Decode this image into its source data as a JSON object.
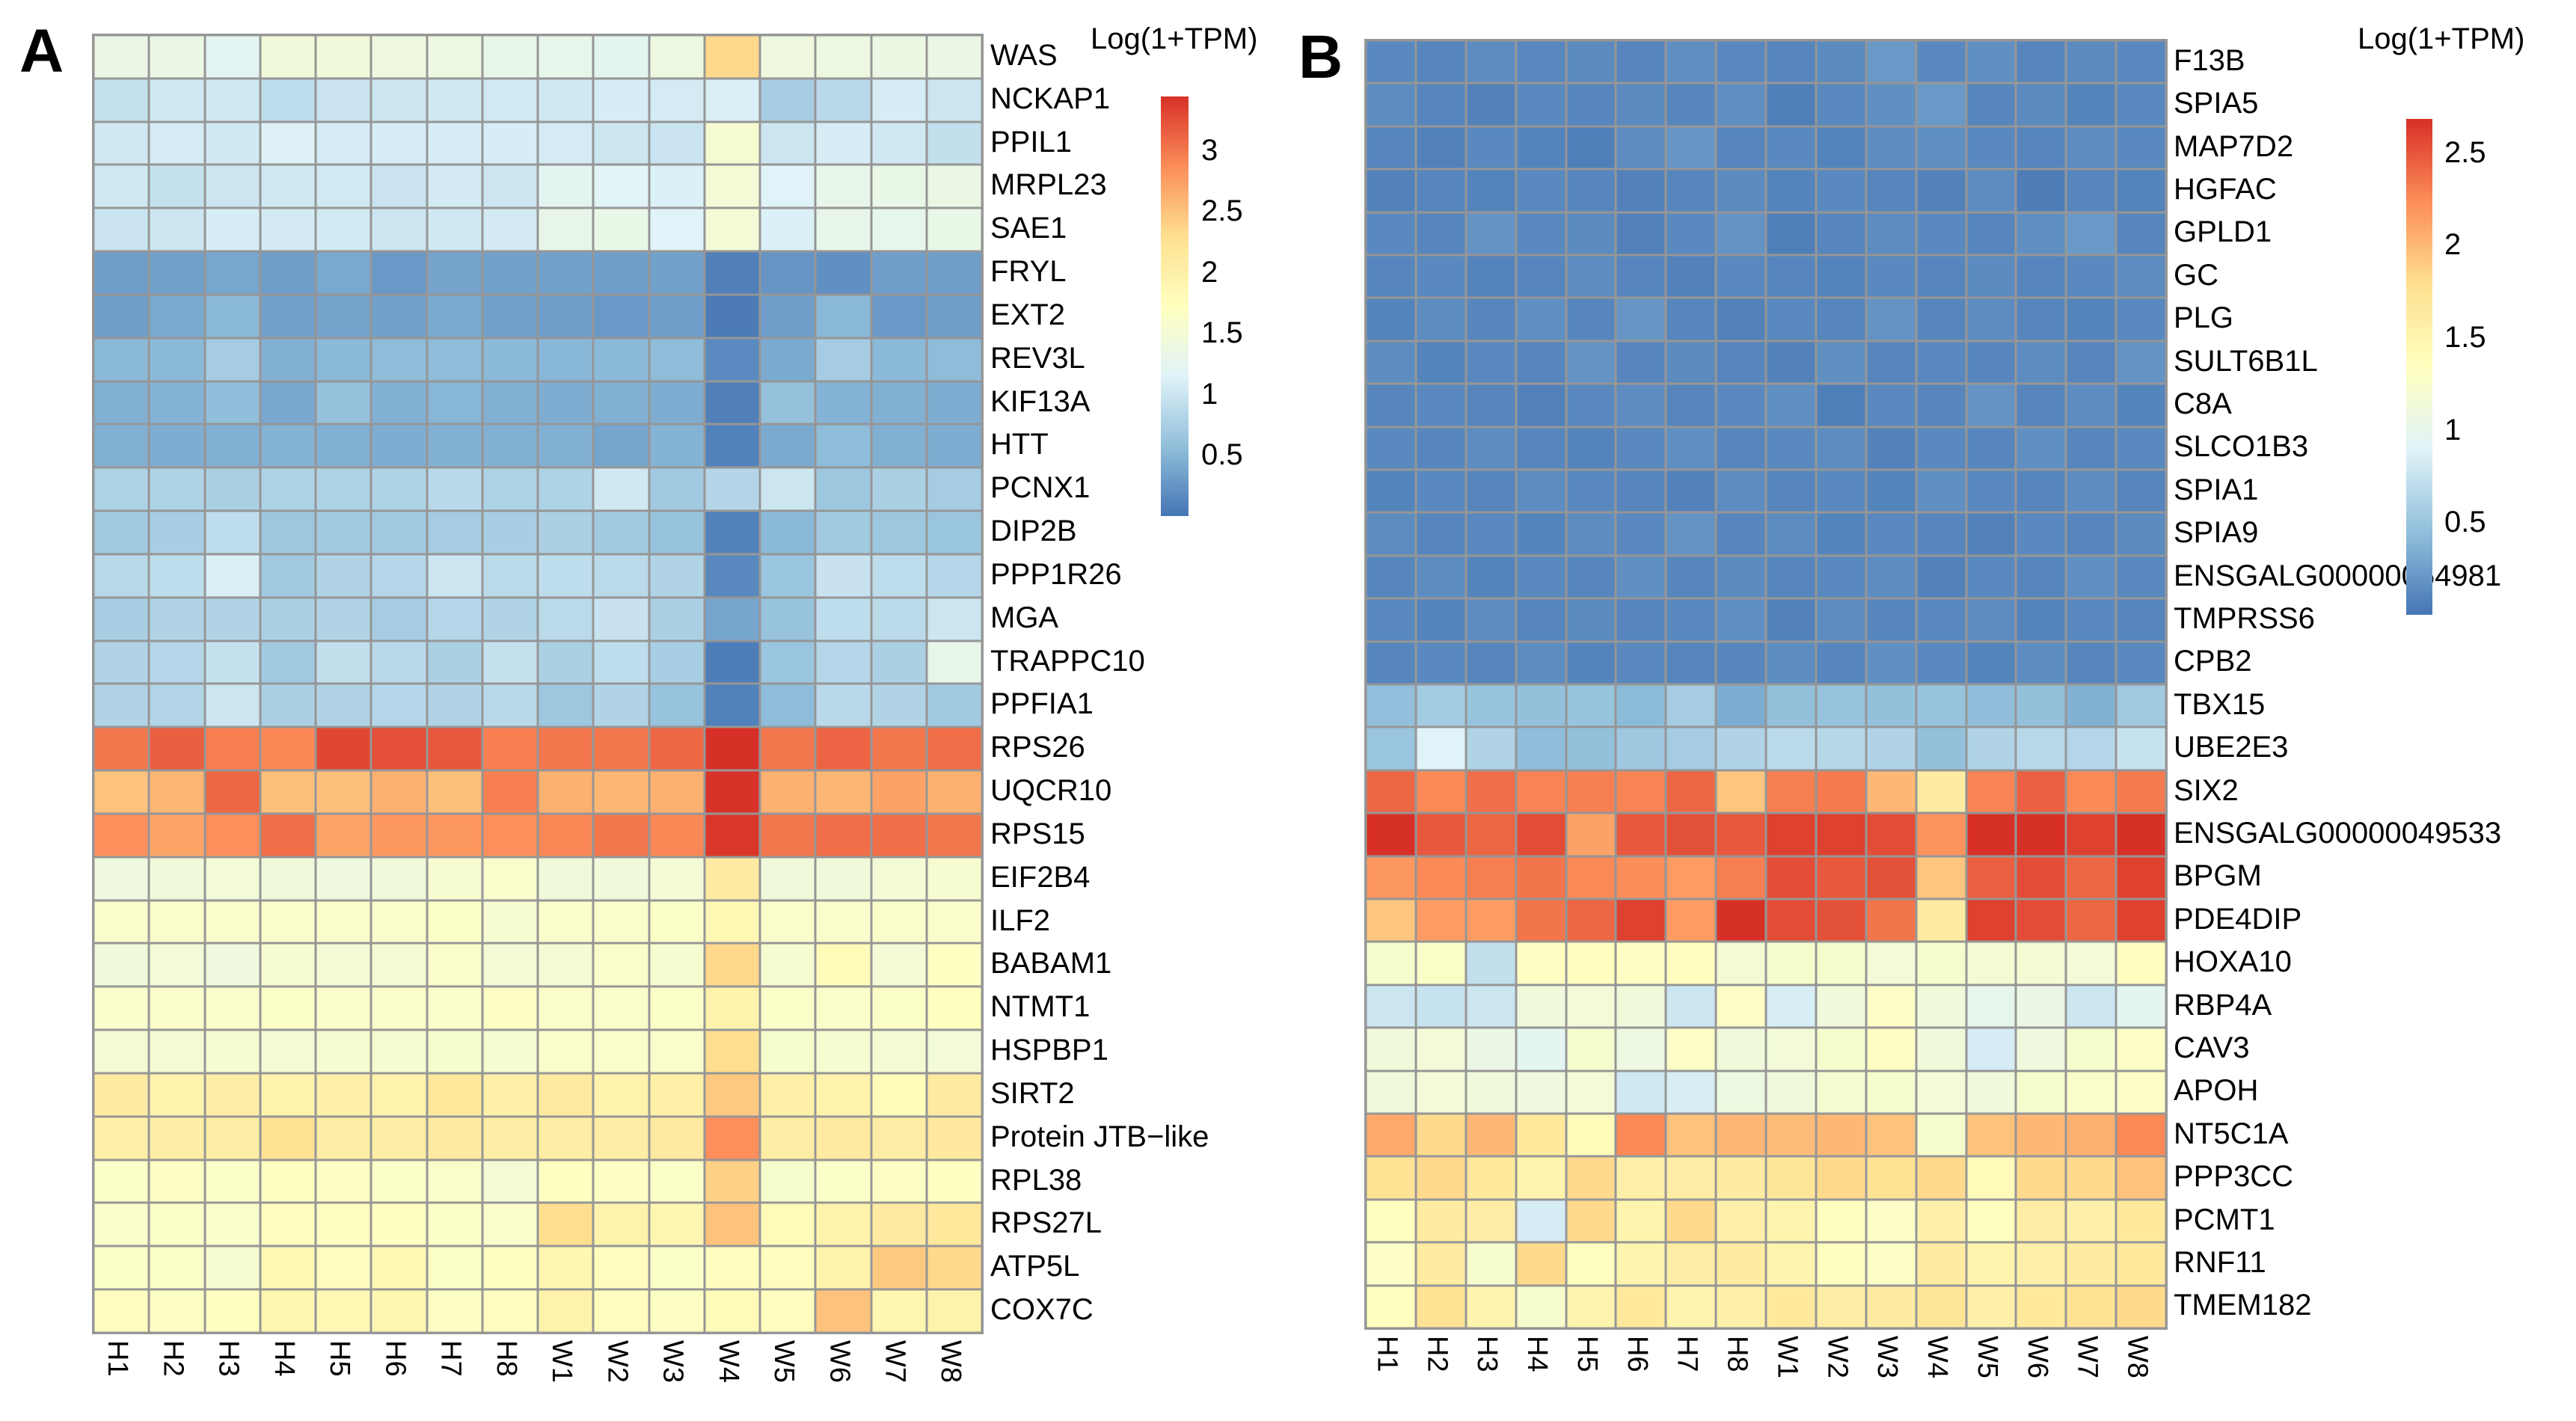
{
  "chart_data": [
    {
      "type": "heatmap",
      "panel_label": "A",
      "legend_title": "Log(1+TPM)",
      "legend_ticks": [
        3,
        2.5,
        2,
        1.5,
        1,
        0.5
      ],
      "vmin": 0,
      "vmax": 3.44,
      "legend_position": "right",
      "grid": true,
      "colormap": [
        "#4575b4",
        "#91bfdb",
        "#e0f3f8",
        "#ffffbf",
        "#fee090",
        "#fc8d59",
        "#d73027"
      ],
      "grid_line_color": "#969696",
      "columns": [
        "H1",
        "H2",
        "H3",
        "H4",
        "H5",
        "H6",
        "H7",
        "H8",
        "W1",
        "W2",
        "W3",
        "W4",
        "W5",
        "W6",
        "W7",
        "W8"
      ],
      "genes": [
        "WAS",
        "NCKAP1",
        "PPIL1",
        "MRPL23",
        "SAE1",
        "FRYL",
        "EXT2",
        "REV3L",
        "KIF13A",
        "HTT",
        "PCNX1",
        "DIP2B",
        "PPP1R26",
        "MGA",
        "TRAPPC10",
        "PPFIA1",
        "RPS26",
        "UQCR10",
        "RPS15",
        "EIF2B4",
        "ILF2",
        "BABAM1",
        "NTMT1",
        "HSPBP1",
        "SIRT2",
        "Protein JTB−like",
        "RPL38",
        "RPS27L",
        "ATP5L",
        "COX7C"
      ],
      "values": [
        [
          1.35,
          1.35,
          1.2,
          1.45,
          1.45,
          1.4,
          1.38,
          1.3,
          1.28,
          1.22,
          1.38,
          2.35,
          1.4,
          1.38,
          1.36,
          1.35
        ],
        [
          0.95,
          1.03,
          1.03,
          0.89,
          0.98,
          1.0,
          1.03,
          1.04,
          1.03,
          1.08,
          1.06,
          1.1,
          0.73,
          0.86,
          1.08,
          1.0
        ],
        [
          1.03,
          1.06,
          1.03,
          1.13,
          1.06,
          1.08,
          1.08,
          1.08,
          1.06,
          1.01,
          0.98,
          1.55,
          1.0,
          1.08,
          1.03,
          0.93
        ],
        [
          1.02,
          0.95,
          1.0,
          1.02,
          1.04,
          0.98,
          1.05,
          1.0,
          1.22,
          1.18,
          1.12,
          1.5,
          1.15,
          1.3,
          1.32,
          1.35
        ],
        [
          0.98,
          1.0,
          1.08,
          1.05,
          1.04,
          1.0,
          1.03,
          1.05,
          1.3,
          1.32,
          1.15,
          1.5,
          1.12,
          1.3,
          1.28,
          1.32
        ],
        [
          0.32,
          0.34,
          0.38,
          0.32,
          0.4,
          0.28,
          0.36,
          0.34,
          0.34,
          0.32,
          0.34,
          0.08,
          0.25,
          0.2,
          0.32,
          0.32
        ],
        [
          0.32,
          0.4,
          0.52,
          0.34,
          0.36,
          0.34,
          0.4,
          0.33,
          0.32,
          0.28,
          0.32,
          0.05,
          0.32,
          0.52,
          0.28,
          0.32
        ],
        [
          0.53,
          0.53,
          0.72,
          0.46,
          0.53,
          0.55,
          0.55,
          0.53,
          0.51,
          0.53,
          0.55,
          0.16,
          0.41,
          0.72,
          0.53,
          0.55
        ],
        [
          0.46,
          0.48,
          0.57,
          0.39,
          0.6,
          0.46,
          0.5,
          0.46,
          0.43,
          0.46,
          0.43,
          0.08,
          0.6,
          0.48,
          0.46,
          0.43
        ],
        [
          0.46,
          0.43,
          0.46,
          0.48,
          0.46,
          0.43,
          0.46,
          0.46,
          0.46,
          0.37,
          0.48,
          0.1,
          0.41,
          0.55,
          0.46,
          0.43
        ],
        [
          0.79,
          0.79,
          0.76,
          0.79,
          0.79,
          0.79,
          0.86,
          0.79,
          0.79,
          1.02,
          0.69,
          0.82,
          1.0,
          0.66,
          0.76,
          0.72
        ],
        [
          0.69,
          0.74,
          0.9,
          0.66,
          0.69,
          0.69,
          0.72,
          0.74,
          0.76,
          0.69,
          0.62,
          0.1,
          0.53,
          0.69,
          0.66,
          0.64
        ],
        [
          0.86,
          0.9,
          1.1,
          0.69,
          0.8,
          0.83,
          1.0,
          0.87,
          0.9,
          0.87,
          0.8,
          0.15,
          0.64,
          0.97,
          0.9,
          0.83
        ],
        [
          0.74,
          0.8,
          0.8,
          0.76,
          0.8,
          0.72,
          0.83,
          0.8,
          0.87,
          0.97,
          0.76,
          0.37,
          0.62,
          0.9,
          0.87,
          1.0
        ],
        [
          0.8,
          0.83,
          0.95,
          0.69,
          0.93,
          0.86,
          0.76,
          0.95,
          0.76,
          0.9,
          0.74,
          0.07,
          0.64,
          0.83,
          0.76,
          1.3
        ],
        [
          0.8,
          0.81,
          1.0,
          0.76,
          0.8,
          0.83,
          0.8,
          0.86,
          0.66,
          0.8,
          0.62,
          0.09,
          0.55,
          0.86,
          0.8,
          0.69
        ],
        [
          3.0,
          3.15,
          2.95,
          2.9,
          3.3,
          3.25,
          3.2,
          2.95,
          3.0,
          3.0,
          3.1,
          3.44,
          3.0,
          3.12,
          3.0,
          3.05
        ],
        [
          2.5,
          2.58,
          3.1,
          2.52,
          2.52,
          2.62,
          2.52,
          2.95,
          2.62,
          2.58,
          2.62,
          3.42,
          2.62,
          2.58,
          2.72,
          2.62
        ],
        [
          2.85,
          2.7,
          2.85,
          3.05,
          2.7,
          2.8,
          2.8,
          2.85,
          2.9,
          3.0,
          2.9,
          3.4,
          3.0,
          3.05,
          3.05,
          3.0
        ],
        [
          1.42,
          1.45,
          1.48,
          1.45,
          1.42,
          1.45,
          1.55,
          1.6,
          1.45,
          1.45,
          1.5,
          2.1,
          1.45,
          1.45,
          1.5,
          1.55
        ],
        [
          1.6,
          1.62,
          1.6,
          1.62,
          1.62,
          1.62,
          1.65,
          1.55,
          1.62,
          1.62,
          1.65,
          1.85,
          1.62,
          1.6,
          1.62,
          1.62
        ],
        [
          1.45,
          1.48,
          1.42,
          1.55,
          1.5,
          1.52,
          1.62,
          1.5,
          1.52,
          1.62,
          1.55,
          2.35,
          1.55,
          1.8,
          1.5,
          1.7
        ],
        [
          1.6,
          1.62,
          1.62,
          1.65,
          1.62,
          1.62,
          1.62,
          1.68,
          1.62,
          1.62,
          1.65,
          1.95,
          1.65,
          1.62,
          1.65,
          1.72
        ],
        [
          1.5,
          1.52,
          1.55,
          1.52,
          1.55,
          1.55,
          1.58,
          1.55,
          1.62,
          1.62,
          1.62,
          2.3,
          1.58,
          1.55,
          1.52,
          1.48
        ],
        [
          2.1,
          1.95,
          2.05,
          1.95,
          2.0,
          1.95,
          2.15,
          2.0,
          2.1,
          1.95,
          2.0,
          2.45,
          2.0,
          1.95,
          1.8,
          2.1
        ],
        [
          2.0,
          2.05,
          2.05,
          2.25,
          2.05,
          2.05,
          2.1,
          2.05,
          2.05,
          2.05,
          2.1,
          2.85,
          2.05,
          2.1,
          2.05,
          2.12
        ],
        [
          1.65,
          1.68,
          1.65,
          1.7,
          1.68,
          1.65,
          1.62,
          1.5,
          1.7,
          1.68,
          1.65,
          2.4,
          1.58,
          1.65,
          1.68,
          1.7
        ],
        [
          1.62,
          1.65,
          1.6,
          1.75,
          1.7,
          1.7,
          1.65,
          1.62,
          2.3,
          1.95,
          1.88,
          2.5,
          1.8,
          1.95,
          2.1,
          2.15
        ],
        [
          1.65,
          1.65,
          1.55,
          1.85,
          1.75,
          1.85,
          1.65,
          1.7,
          1.88,
          1.75,
          1.65,
          1.75,
          1.75,
          1.95,
          2.45,
          2.35
        ],
        [
          1.75,
          1.68,
          1.7,
          1.88,
          1.85,
          1.88,
          1.68,
          1.75,
          1.95,
          1.75,
          1.68,
          1.8,
          1.75,
          2.5,
          1.88,
          1.95
        ]
      ]
    },
    {
      "type": "heatmap",
      "panel_label": "B",
      "legend_title": "Log(1+TPM)",
      "legend_ticks": [
        2.5,
        2,
        1.5,
        1,
        0.5
      ],
      "vmin": 0,
      "vmax": 2.68,
      "legend_position": "right",
      "grid": true,
      "colormap": [
        "#4575b4",
        "#91bfdb",
        "#e0f3f8",
        "#ffffbf",
        "#fee090",
        "#fc8d59",
        "#d73027"
      ],
      "grid_line_color": "#969696",
      "columns": [
        "H1",
        "H2",
        "H3",
        "H4",
        "H5",
        "H6",
        "H7",
        "H8",
        "W1",
        "W2",
        "W3",
        "W4",
        "W5",
        "W6",
        "W7",
        "W8"
      ],
      "genes": [
        "F13B",
        "SPIA5",
        "MAP7D2",
        "HGFAC",
        "GPLD1",
        "GC",
        "PLG",
        "SULT6B1L",
        "C8A",
        "SLCO1B3",
        "SPIA1",
        "SPIA9",
        "ENSGALG00000054981",
        "TMPRSS6",
        "CPB2",
        "TBX15",
        "UBE2E3",
        "SIX2",
        "ENSGALG00000049533",
        "BPGM",
        "PDE4DIP",
        "HOXA10",
        "RBP4A",
        "CAV3",
        "APOH",
        "NT5C1A",
        "PPP3CC",
        "PCMT1",
        "RNF11",
        "TMEM182"
      ],
      "values": [
        [
          0.12,
          0.1,
          0.14,
          0.11,
          0.13,
          0.1,
          0.15,
          0.12,
          0.1,
          0.13,
          0.22,
          0.12,
          0.16,
          0.1,
          0.13,
          0.12
        ],
        [
          0.14,
          0.1,
          0.08,
          0.12,
          0.1,
          0.13,
          0.1,
          0.15,
          0.06,
          0.12,
          0.16,
          0.22,
          0.1,
          0.13,
          0.09,
          0.12
        ],
        [
          0.1,
          0.08,
          0.12,
          0.09,
          0.06,
          0.14,
          0.2,
          0.1,
          0.12,
          0.09,
          0.14,
          0.16,
          0.12,
          0.1,
          0.14,
          0.12
        ],
        [
          0.08,
          0.1,
          0.09,
          0.12,
          0.1,
          0.08,
          0.1,
          0.13,
          0.09,
          0.12,
          0.1,
          0.08,
          0.14,
          0.05,
          0.1,
          0.09
        ],
        [
          0.12,
          0.1,
          0.18,
          0.12,
          0.13,
          0.08,
          0.12,
          0.18,
          0.06,
          0.1,
          0.14,
          0.12,
          0.1,
          0.16,
          0.22,
          0.1
        ],
        [
          0.1,
          0.12,
          0.09,
          0.1,
          0.14,
          0.1,
          0.08,
          0.12,
          0.1,
          0.09,
          0.12,
          0.1,
          0.13,
          0.1,
          0.12,
          0.14
        ],
        [
          0.09,
          0.14,
          0.1,
          0.16,
          0.1,
          0.2,
          0.1,
          0.08,
          0.12,
          0.1,
          0.18,
          0.1,
          0.14,
          0.1,
          0.09,
          0.12
        ],
        [
          0.14,
          0.09,
          0.12,
          0.1,
          0.18,
          0.1,
          0.13,
          0.1,
          0.08,
          0.16,
          0.1,
          0.12,
          0.1,
          0.14,
          0.1,
          0.18
        ],
        [
          0.1,
          0.12,
          0.1,
          0.08,
          0.12,
          0.14,
          0.1,
          0.12,
          0.16,
          0.06,
          0.12,
          0.1,
          0.18,
          0.1,
          0.14,
          0.09
        ],
        [
          0.12,
          0.1,
          0.14,
          0.1,
          0.09,
          0.12,
          0.16,
          0.1,
          0.12,
          0.14,
          0.08,
          0.12,
          0.1,
          0.16,
          0.1,
          0.12
        ],
        [
          0.09,
          0.12,
          0.1,
          0.14,
          0.12,
          0.1,
          0.08,
          0.14,
          0.1,
          0.12,
          0.09,
          0.16,
          0.12,
          0.1,
          0.14,
          0.1
        ],
        [
          0.14,
          0.1,
          0.12,
          0.09,
          0.14,
          0.12,
          0.18,
          0.1,
          0.14,
          0.09,
          0.12,
          0.1,
          0.08,
          0.12,
          0.1,
          0.13
        ],
        [
          0.1,
          0.14,
          0.09,
          0.12,
          0.1,
          0.16,
          0.1,
          0.13,
          0.1,
          0.12,
          0.14,
          0.08,
          0.12,
          0.1,
          0.16,
          0.12
        ],
        [
          0.12,
          0.09,
          0.14,
          0.1,
          0.13,
          0.1,
          0.12,
          0.16,
          0.08,
          0.14,
          0.1,
          0.12,
          0.14,
          0.09,
          0.12,
          0.1
        ],
        [
          0.1,
          0.12,
          0.1,
          0.14,
          0.09,
          0.12,
          0.1,
          0.1,
          0.14,
          0.1,
          0.16,
          0.12,
          0.09,
          0.14,
          0.1,
          0.12
        ],
        [
          0.45,
          0.55,
          0.48,
          0.46,
          0.48,
          0.42,
          0.56,
          0.33,
          0.46,
          0.48,
          0.46,
          0.48,
          0.44,
          0.46,
          0.36,
          0.53
        ],
        [
          0.5,
          0.89,
          0.62,
          0.44,
          0.46,
          0.52,
          0.56,
          0.62,
          0.68,
          0.65,
          0.62,
          0.46,
          0.62,
          0.66,
          0.64,
          0.75
        ],
        [
          2.42,
          2.25,
          2.38,
          2.28,
          2.3,
          2.28,
          2.42,
          1.93,
          2.3,
          2.32,
          2.0,
          1.62,
          2.28,
          2.45,
          2.25,
          2.32
        ],
        [
          2.68,
          2.49,
          2.42,
          2.54,
          2.12,
          2.49,
          2.52,
          2.49,
          2.6,
          2.6,
          2.54,
          2.2,
          2.68,
          2.68,
          2.6,
          2.68
        ],
        [
          2.18,
          2.25,
          2.3,
          2.35,
          2.25,
          2.23,
          2.15,
          2.3,
          2.54,
          2.49,
          2.52,
          1.93,
          2.45,
          2.54,
          2.42,
          2.6
        ],
        [
          1.93,
          2.15,
          2.15,
          2.35,
          2.42,
          2.6,
          2.15,
          2.68,
          2.54,
          2.52,
          2.35,
          1.62,
          2.6,
          2.54,
          2.42,
          2.6
        ],
        [
          1.23,
          1.28,
          0.72,
          1.32,
          1.35,
          1.32,
          1.35,
          1.18,
          1.23,
          1.23,
          1.15,
          1.23,
          1.18,
          1.18,
          1.15,
          1.35
        ],
        [
          0.78,
          0.75,
          0.78,
          1.12,
          1.15,
          1.13,
          0.78,
          1.29,
          0.85,
          1.13,
          1.29,
          1.13,
          1.0,
          1.05,
          0.78,
          0.95
        ],
        [
          1.13,
          1.15,
          1.05,
          0.95,
          1.23,
          1.08,
          1.29,
          1.13,
          1.15,
          1.23,
          1.32,
          1.13,
          0.83,
          1.1,
          1.23,
          1.29
        ],
        [
          1.13,
          1.15,
          1.13,
          1.1,
          1.15,
          0.8,
          0.85,
          1.08,
          1.13,
          1.2,
          1.23,
          1.15,
          1.13,
          1.23,
          1.26,
          1.29
        ],
        [
          2.08,
          1.82,
          2.0,
          1.66,
          1.4,
          2.25,
          1.95,
          2.0,
          1.98,
          2.0,
          1.95,
          1.23,
          1.95,
          2.0,
          2.04,
          2.25
        ],
        [
          1.74,
          1.82,
          1.66,
          1.5,
          1.82,
          1.55,
          1.6,
          1.62,
          1.7,
          1.82,
          1.74,
          1.82,
          1.4,
          1.82,
          1.82,
          1.95
        ],
        [
          1.34,
          1.62,
          1.6,
          0.83,
          1.82,
          1.5,
          1.82,
          1.55,
          1.5,
          1.34,
          1.29,
          1.55,
          1.34,
          1.6,
          1.55,
          1.66
        ],
        [
          1.29,
          1.62,
          1.23,
          1.82,
          1.34,
          1.5,
          1.6,
          1.62,
          1.5,
          1.34,
          1.29,
          1.62,
          1.5,
          1.55,
          1.62,
          1.66
        ],
        [
          1.34,
          1.74,
          1.5,
          1.23,
          1.5,
          1.66,
          1.5,
          1.55,
          1.66,
          1.6,
          1.62,
          1.7,
          1.55,
          1.66,
          1.74,
          1.82
        ]
      ]
    }
  ]
}
